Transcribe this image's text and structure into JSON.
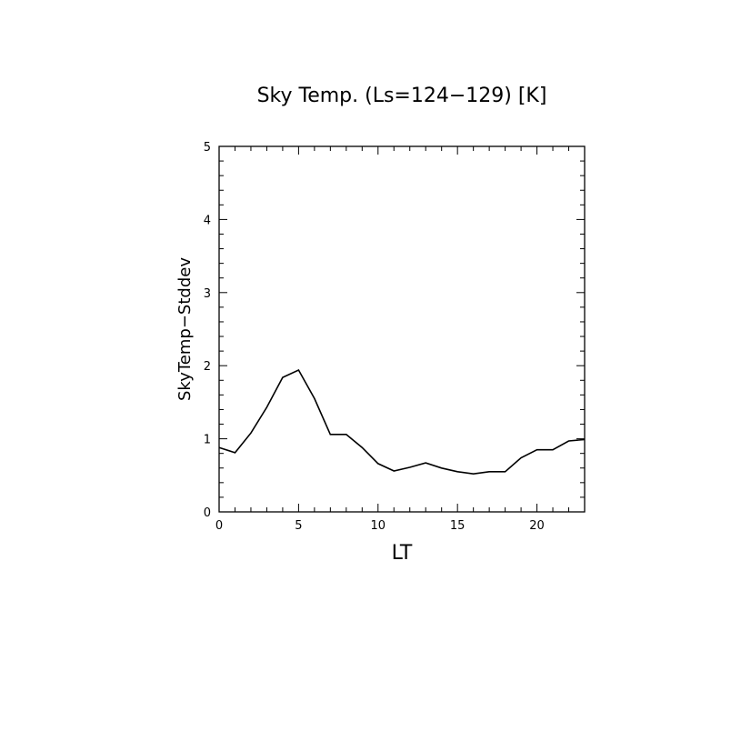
{
  "chart_data": {
    "type": "line",
    "title": "Sky Temp. (Ls=124−129) [K]",
    "xlabel": "LT",
    "ylabel": "SkyTemp−Stddev",
    "xlim": [
      0,
      23
    ],
    "ylim": [
      0,
      5
    ],
    "x_ticks_major": [
      0,
      5,
      10,
      15,
      20
    ],
    "y_ticks_major": [
      0,
      1,
      2,
      3,
      4,
      5
    ],
    "grid": false,
    "series": [
      {
        "x": [
          0,
          1,
          2,
          3,
          4,
          5,
          6,
          7,
          8,
          9,
          10,
          11,
          12,
          13,
          14,
          15,
          16,
          17,
          18,
          19,
          20,
          21,
          22,
          23
        ],
        "values": [
          0.88,
          0.81,
          1.08,
          1.43,
          1.84,
          1.94,
          1.55,
          1.06,
          1.06,
          0.88,
          0.66,
          0.56,
          0.61,
          0.67,
          0.6,
          0.55,
          0.52,
          0.55,
          0.55,
          0.74,
          0.85,
          0.85,
          0.97,
          0.99
        ]
      }
    ]
  }
}
